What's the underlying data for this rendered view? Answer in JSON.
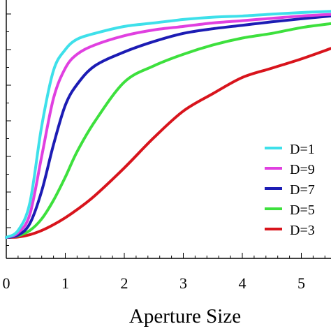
{
  "chart_data": {
    "type": "line",
    "title": "",
    "xlabel": "Aperture Size",
    "ylabel": "",
    "xlim": [
      0,
      5.5
    ],
    "ylim": [
      0,
      1
    ],
    "x_ticks": [
      "0",
      "1",
      "2",
      "3",
      "4",
      "5"
    ],
    "grid": false,
    "legend_position": "right",
    "series": [
      {
        "name": "D=1",
        "color": "#3ee0ea",
        "x": [
          0,
          0.2,
          0.4,
          0.6,
          0.8,
          1.0,
          1.2,
          1.5,
          2.0,
          2.5,
          3.0,
          3.5,
          4.0,
          4.5,
          5.0,
          5.5
        ],
        "y": [
          0.0,
          0.03,
          0.15,
          0.48,
          0.72,
          0.81,
          0.855,
          0.88,
          0.91,
          0.925,
          0.94,
          0.95,
          0.955,
          0.963,
          0.97,
          0.975
        ]
      },
      {
        "name": "D=9",
        "color": "#e040e0",
        "x": [
          0,
          0.2,
          0.4,
          0.6,
          0.8,
          1.0,
          1.2,
          1.5,
          2.0,
          2.5,
          3.0,
          3.5,
          4.0,
          4.5,
          5.0,
          5.5
        ],
        "y": [
          0.0,
          0.02,
          0.1,
          0.35,
          0.6,
          0.73,
          0.79,
          0.83,
          0.87,
          0.895,
          0.91,
          0.925,
          0.935,
          0.945,
          0.955,
          0.962
        ]
      },
      {
        "name": "D=7",
        "color": "#1c1cb4",
        "x": [
          0,
          0.2,
          0.4,
          0.6,
          0.8,
          1.0,
          1.2,
          1.5,
          2.0,
          2.5,
          3.0,
          3.5,
          4.0,
          4.5,
          5.0,
          5.5
        ],
        "y": [
          0.0,
          0.01,
          0.06,
          0.2,
          0.4,
          0.57,
          0.66,
          0.74,
          0.8,
          0.845,
          0.88,
          0.9,
          0.915,
          0.93,
          0.943,
          0.955
        ]
      },
      {
        "name": "D=5",
        "color": "#3de03d",
        "x": [
          0,
          0.2,
          0.4,
          0.6,
          0.8,
          1.0,
          1.2,
          1.5,
          2.0,
          2.5,
          3.0,
          3.5,
          4.0,
          4.5,
          5.0,
          5.5
        ],
        "y": [
          0.0,
          0.007,
          0.03,
          0.08,
          0.16,
          0.26,
          0.37,
          0.5,
          0.67,
          0.74,
          0.79,
          0.83,
          0.86,
          0.88,
          0.905,
          0.922
        ]
      },
      {
        "name": "D=3",
        "color": "#d8141c",
        "x": [
          0,
          0.2,
          0.4,
          0.6,
          0.8,
          1.0,
          1.2,
          1.5,
          2.0,
          2.5,
          3.0,
          3.5,
          4.0,
          4.5,
          5.0,
          5.5
        ],
        "y": [
          0.0,
          0.002,
          0.012,
          0.03,
          0.055,
          0.085,
          0.12,
          0.18,
          0.3,
          0.43,
          0.545,
          0.62,
          0.69,
          0.73,
          0.77,
          0.815
        ]
      }
    ],
    "legend_labels": [
      "D=1",
      "D=9",
      "D=7",
      "D=5",
      "D=3"
    ]
  }
}
